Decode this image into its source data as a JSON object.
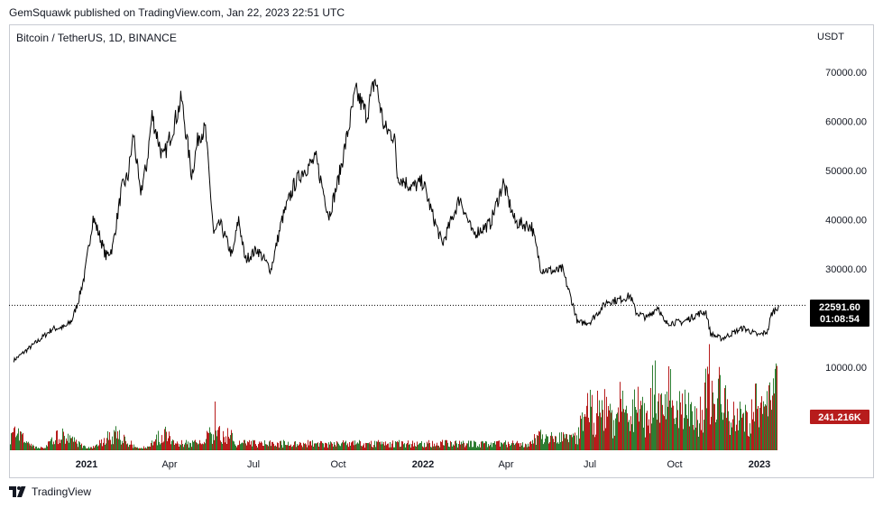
{
  "header": {
    "published_text": "GemSquawk published on TradingView.com, Jan 22, 2023 22:51 UTC",
    "symbol_title": "Bitcoin / TetherUS, 1D, BINANCE",
    "currency": "USDT"
  },
  "footer": {
    "brand": "TradingView"
  },
  "colors": {
    "price_line": "#000000",
    "volume_up": "#2e7d32",
    "volume_down": "#b71c1c",
    "badge_dark": "#000000",
    "badge_volume": "#b71c1c",
    "frame": "#c8cbd2"
  },
  "chart_data": {
    "type": "line",
    "price_axis": {
      "ticks": [
        "70000.00",
        "60000.00",
        "50000.00",
        "40000.00",
        "30000.00",
        "10000.00"
      ],
      "tick_values": [
        70000,
        60000,
        50000,
        40000,
        30000,
        10000
      ]
    },
    "time_axis": {
      "labels": [
        "2021",
        "Apr",
        "Jul",
        "Oct",
        "2022",
        "Apr",
        "Jul",
        "Oct",
        "2023"
      ],
      "label_dates": [
        "2021-01-01",
        "2021-04-01",
        "2021-07-01",
        "2021-10-01",
        "2022-01-01",
        "2022-04-01",
        "2022-07-01",
        "2022-10-01",
        "2023-01-01"
      ],
      "bold": [
        true,
        false,
        false,
        false,
        true,
        false,
        false,
        false,
        true
      ]
    },
    "current_price": {
      "value": 22591.6,
      "label": "22591.60",
      "countdown": "01:08:54"
    },
    "current_volume": {
      "label": "241.216K"
    },
    "series": [
      {
        "points": [
          [
            "2020-10-14",
            11400
          ],
          [
            "2020-10-28",
            13500
          ],
          [
            "2020-11-11",
            15600
          ],
          [
            "2020-11-25",
            17800
          ],
          [
            "2020-12-09",
            18200
          ],
          [
            "2020-12-16",
            19500
          ],
          [
            "2020-12-23",
            23500
          ],
          [
            "2020-12-30",
            28900
          ],
          [
            "2021-01-08",
            40500
          ],
          [
            "2021-01-15",
            36800
          ],
          [
            "2021-01-22",
            32500
          ],
          [
            "2021-01-29",
            34200
          ],
          [
            "2021-02-08",
            46200
          ],
          [
            "2021-02-15",
            48900
          ],
          [
            "2021-02-21",
            57500
          ],
          [
            "2021-02-28",
            45300
          ],
          [
            "2021-03-07",
            50900
          ],
          [
            "2021-03-13",
            61200
          ],
          [
            "2021-03-25",
            52300
          ],
          [
            "2021-04-05",
            58900
          ],
          [
            "2021-04-14",
            64500
          ],
          [
            "2021-04-25",
            49100
          ],
          [
            "2021-05-03",
            57500
          ],
          [
            "2021-05-10",
            58200
          ],
          [
            "2021-05-19",
            37000
          ],
          [
            "2021-05-26",
            39200
          ],
          [
            "2021-06-08",
            32600
          ],
          [
            "2021-06-15",
            40200
          ],
          [
            "2021-06-22",
            31800
          ],
          [
            "2021-07-05",
            34000
          ],
          [
            "2021-07-20",
            29800
          ],
          [
            "2021-08-01",
            40000
          ],
          [
            "2021-08-14",
            47000
          ],
          [
            "2021-08-23",
            49800
          ],
          [
            "2021-09-07",
            52300
          ],
          [
            "2021-09-21",
            40700
          ],
          [
            "2021-10-01",
            48000
          ],
          [
            "2021-10-08",
            54500
          ],
          [
            "2021-10-20",
            66000
          ],
          [
            "2021-11-01",
            61300
          ],
          [
            "2021-11-10",
            68700
          ],
          [
            "2021-11-20",
            58600
          ],
          [
            "2021-12-01",
            57000
          ],
          [
            "2021-12-04",
            49000
          ],
          [
            "2021-12-20",
            46600
          ],
          [
            "2022-01-01",
            47700
          ],
          [
            "2022-01-10",
            41800
          ],
          [
            "2022-01-22",
            35000
          ],
          [
            "2022-02-10",
            44500
          ],
          [
            "2022-02-24",
            37000
          ],
          [
            "2022-03-15",
            39200
          ],
          [
            "2022-03-29",
            47500
          ],
          [
            "2022-04-11",
            39500
          ],
          [
            "2022-04-29",
            38600
          ],
          [
            "2022-05-09",
            30000
          ],
          [
            "2022-05-25",
            29500
          ],
          [
            "2022-06-01",
            30000
          ],
          [
            "2022-06-13",
            22500
          ],
          [
            "2022-06-18",
            19000
          ],
          [
            "2022-07-01",
            19200
          ],
          [
            "2022-07-20",
            23400
          ],
          [
            "2022-07-30",
            23600
          ],
          [
            "2022-08-14",
            24500
          ],
          [
            "2022-08-20",
            21200
          ],
          [
            "2022-09-01",
            20000
          ],
          [
            "2022-09-13",
            22400
          ],
          [
            "2022-09-20",
            19000
          ],
          [
            "2022-10-10",
            19200
          ],
          [
            "2022-10-26",
            20800
          ],
          [
            "2022-11-04",
            21300
          ],
          [
            "2022-11-09",
            16800
          ],
          [
            "2022-11-21",
            15800
          ],
          [
            "2022-12-14",
            18000
          ],
          [
            "2022-12-31",
            16500
          ],
          [
            "2023-01-10",
            17300
          ],
          [
            "2023-01-14",
            20800
          ],
          [
            "2023-01-22",
            22591
          ]
        ]
      }
    ],
    "volume_series": {
      "ylim": [
        0,
        500000
      ]
    }
  }
}
